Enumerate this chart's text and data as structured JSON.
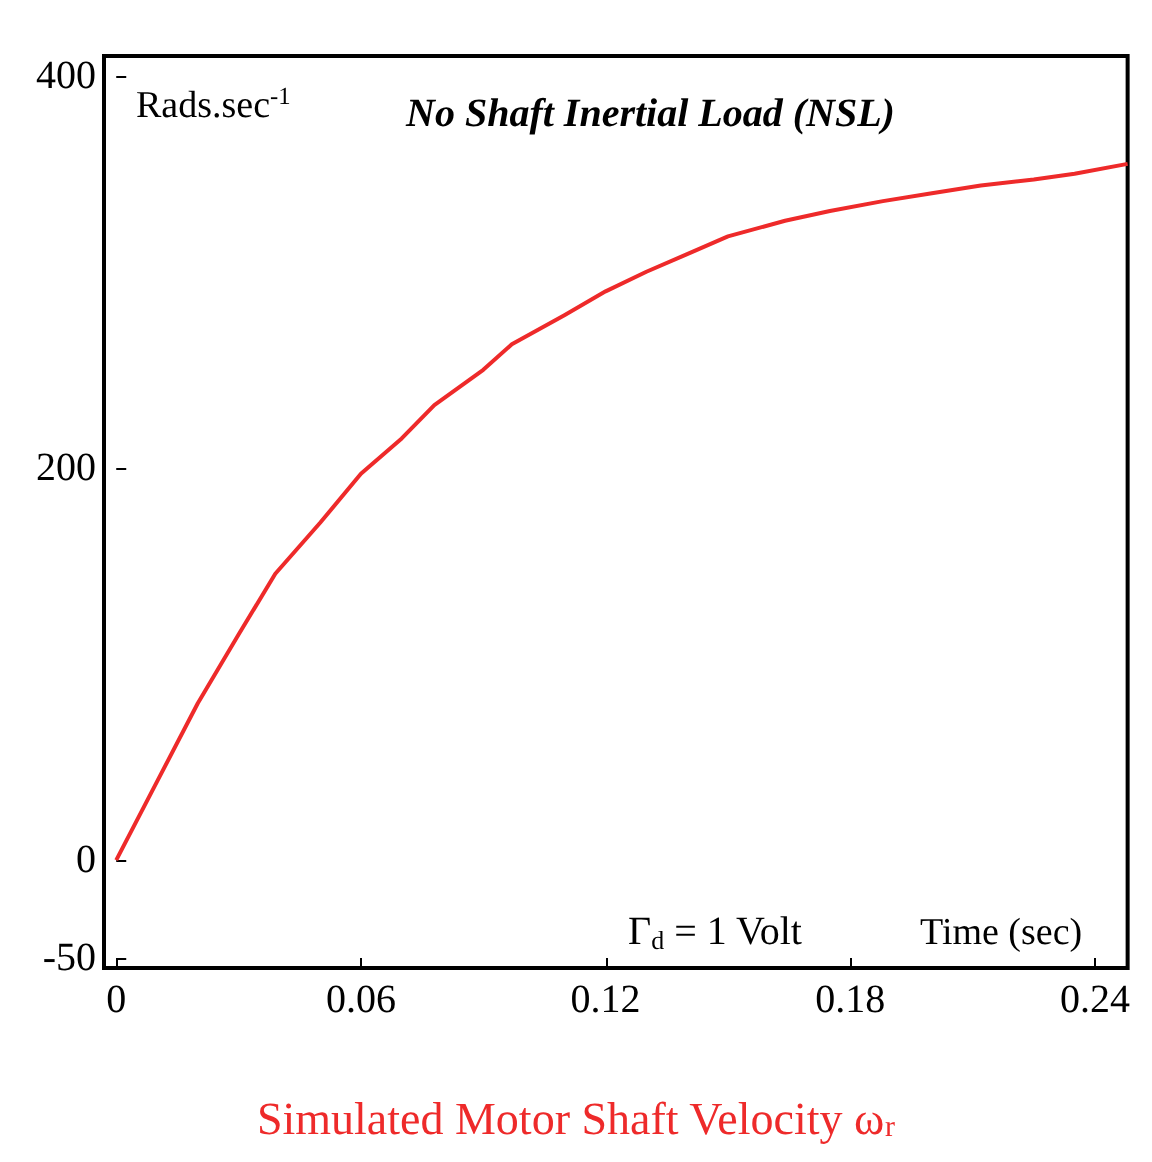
{
  "chart_data": {
    "type": "line",
    "title": "No Shaft Inertial Load (NSL)",
    "ylabel": "Rads.sec$^{-1}$",
    "xlabel": "Time (sec)",
    "annotations": [
      "Γ$_{d}$ = 1 Volt",
      "Simulated Motor Shaft Velocity ω$_{r}$"
    ],
    "x": [
      0,
      0.01,
      0.02,
      0.03,
      0.039,
      0.05,
      0.06,
      0.07,
      0.078,
      0.09,
      0.097,
      0.11,
      0.12,
      0.13,
      0.14,
      0.15,
      0.164,
      0.175,
      0.188,
      0.2,
      0.212,
      0.225,
      0.235,
      0.248
    ],
    "series": [
      {
        "color": "#ee2a2a",
        "values": [
          0,
          40,
          80,
          115,
          146,
          172,
          197,
          215,
          232,
          250,
          263,
          278,
          290,
          300,
          309,
          318,
          326,
          331,
          336,
          340,
          344,
          347,
          350,
          355
        ]
      }
    ],
    "xlim": [
      -0.003,
      0.248
    ],
    "ylim": [
      -55,
      410
    ],
    "xticks": [
      0,
      0.06,
      0.12,
      0.18,
      0.24
    ],
    "yticks": [
      -50,
      0,
      200,
      400
    ],
    "grid": false,
    "marker": "none",
    "line_style": "solid"
  }
}
